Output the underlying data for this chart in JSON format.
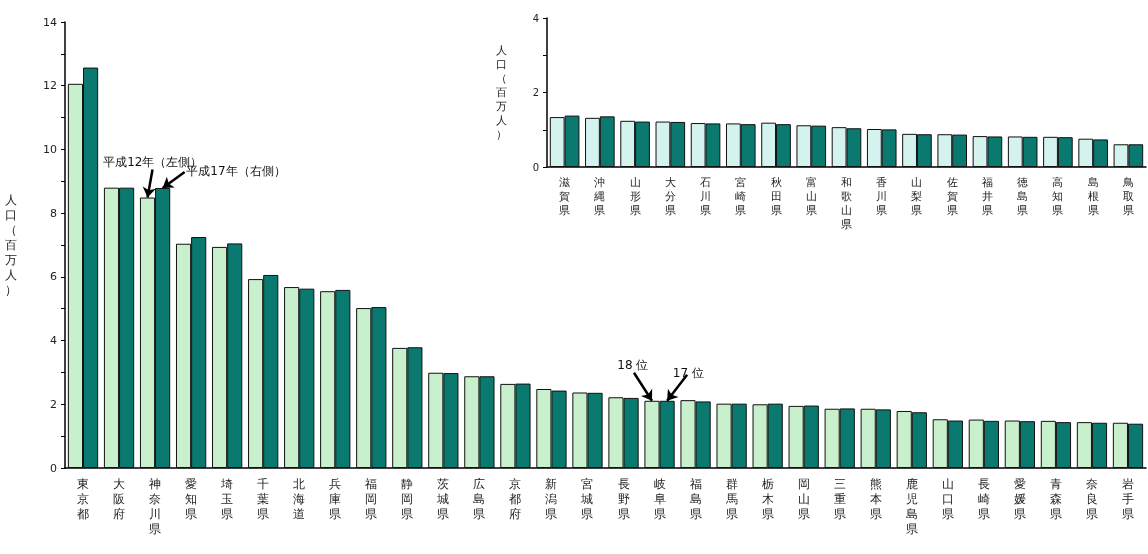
{
  "chart_data": [
    {
      "type": "bar",
      "ylabel": "人口（百万人）",
      "categories": [
        "東京都",
        "大阪府",
        "神奈川県",
        "愛知県",
        "埼玉県",
        "千葉県",
        "北海道",
        "兵庫県",
        "福岡県",
        "静岡県",
        "茨城県",
        "広島県",
        "京都府",
        "新潟県",
        "宮城県",
        "長野県",
        "岐阜県",
        "福島県",
        "群馬県",
        "栃木県",
        "岡山県",
        "三重県",
        "熊本県",
        "鹿児島県",
        "山口県",
        "長崎県",
        "愛媛県",
        "青森県",
        "奈良県",
        "岩手県"
      ],
      "series": [
        {
          "color": "#c8f0cc",
          "values": [
            12.06,
            8.8,
            8.49,
            7.04,
            6.94,
            5.93,
            5.68,
            5.55,
            5.02,
            3.77,
            2.99,
            2.88,
            2.64,
            2.48,
            2.37,
            2.22,
            2.11,
            2.13,
            2.02,
            2.0,
            1.95,
            1.86,
            1.86,
            1.79,
            1.53,
            1.52,
            1.49,
            1.48,
            1.44,
            1.42
          ]
        },
        {
          "color": "#0a7a70",
          "values": [
            12.57,
            8.8,
            8.79,
            7.25,
            7.05,
            6.06,
            5.63,
            5.59,
            5.05,
            3.79,
            2.98,
            2.88,
            2.65,
            2.43,
            2.36,
            2.2,
            2.11,
            2.09,
            2.02,
            2.02,
            1.96,
            1.87,
            1.84,
            1.75,
            1.49,
            1.48,
            1.47,
            1.44,
            1.42,
            1.39
          ]
        }
      ],
      "ylim": [
        0,
        14
      ],
      "yticks": [
        0,
        {
          "value": 1,
          "label": null
        },
        2,
        {
          "value": 3,
          "label": null
        },
        4,
        {
          "value": 5,
          "label": null
        },
        6,
        {
          "value": 7,
          "label": null
        },
        8,
        {
          "value": 9,
          "label": null
        },
        10,
        {
          "value": 11,
          "label": null
        },
        12,
        {
          "value": 13,
          "label": null
        },
        14
      ],
      "grid": false,
      "annotations": [
        {
          "text": "平成12年（左側）",
          "x": "神奈川県",
          "y": 8.49
        },
        {
          "text": "平成17年（右側）",
          "x": "神奈川県",
          "y": 8.79
        },
        {
          "text": "18 位",
          "x": "岐阜県",
          "y": 2.11
        },
        {
          "text": "17 位",
          "x": "岐阜県",
          "y": 2.11
        }
      ]
    },
    {
      "type": "bar",
      "ylabel": "人口（百万人）",
      "categories": [
        "滋賀県",
        "沖縄県",
        "山形県",
        "大分県",
        "石川県",
        "宮崎県",
        "秋田県",
        "富山県",
        "和歌山県",
        "香川県",
        "山梨県",
        "佐賀県",
        "福井県",
        "徳島県",
        "高知県",
        "島根県",
        "鳥取県"
      ],
      "series": [
        {
          "color": "#d4f2ee",
          "values": [
            1.34,
            1.32,
            1.24,
            1.22,
            1.18,
            1.17,
            1.19,
            1.12,
            1.07,
            1.02,
            0.89,
            0.88,
            0.83,
            0.82,
            0.81,
            0.76,
            0.61
          ]
        },
        {
          "color": "#0a7a70",
          "values": [
            1.38,
            1.36,
            1.22,
            1.21,
            1.17,
            1.15,
            1.15,
            1.11,
            1.04,
            1.01,
            0.88,
            0.87,
            0.82,
            0.81,
            0.8,
            0.74,
            0.61
          ]
        }
      ],
      "ylim": [
        0,
        4
      ],
      "yticks": [
        0,
        {
          "value": 1,
          "label": null
        },
        2,
        {
          "value": 3,
          "label": null
        },
        4
      ],
      "grid": false
    }
  ]
}
